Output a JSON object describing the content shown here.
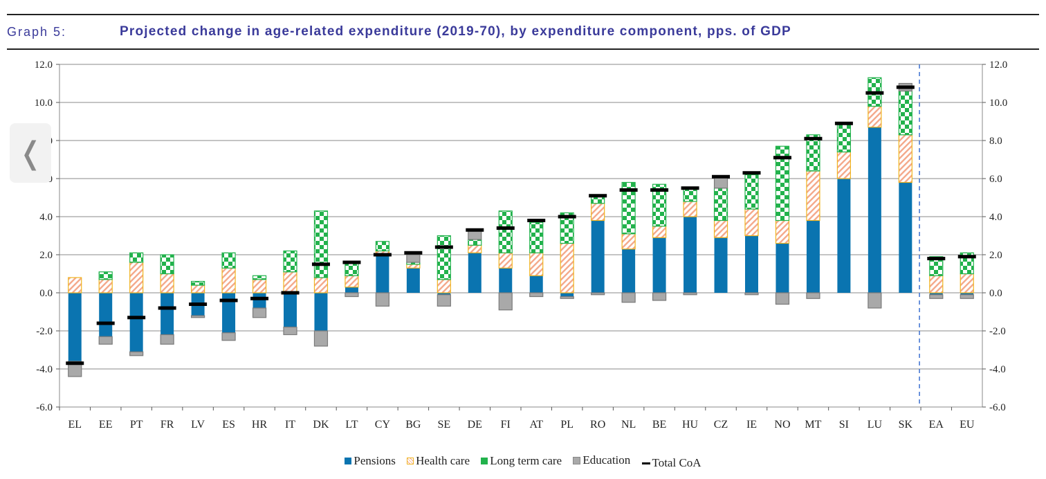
{
  "header": {
    "graph_number": "Graph 5:",
    "title": "Projected change in age-related expenditure (2019-70), by expenditure component, pps. of GDP"
  },
  "nav": {
    "back_glyph": "❬"
  },
  "colors": {
    "pensions": "#0a74b0",
    "health_stroke": "#f0b41e",
    "health_hatch": "#f4a88a",
    "ltc": "#22b24c",
    "education": "#a9a9a9",
    "total": "#000000",
    "title": "#3a3a9a"
  },
  "legend": {
    "pensions": "Pensions",
    "health": "Health care",
    "ltc": "Long term care",
    "education": "Education",
    "total": "Total CoA"
  },
  "chart_data": {
    "type": "bar",
    "stacked": true,
    "categories": [
      "EL",
      "EE",
      "PT",
      "FR",
      "LV",
      "ES",
      "HR",
      "IT",
      "DK",
      "LT",
      "CY",
      "BG",
      "SE",
      "DE",
      "FI",
      "AT",
      "PL",
      "RO",
      "NL",
      "BE",
      "HU",
      "CZ",
      "IE",
      "NO",
      "MT",
      "SI",
      "LU",
      "SK",
      "EA",
      "EU"
    ],
    "series": [
      {
        "name": "Pensions",
        "values": [
          -3.6,
          -2.3,
          -3.1,
          -2.2,
          -1.2,
          -2.1,
          -0.8,
          -1.8,
          -2.0,
          0.3,
          2.0,
          1.3,
          -0.1,
          2.1,
          1.3,
          0.9,
          -0.2,
          3.8,
          2.3,
          2.9,
          4.0,
          2.9,
          3.0,
          2.6,
          3.8,
          6.0,
          8.7,
          5.8,
          -0.1,
          -0.1
        ]
      },
      {
        "name": "Health care",
        "values": [
          0.8,
          0.7,
          1.6,
          1.0,
          0.4,
          1.3,
          0.7,
          1.1,
          0.8,
          0.6,
          0.2,
          0.2,
          0.7,
          0.4,
          0.8,
          1.2,
          2.6,
          0.9,
          0.8,
          0.6,
          0.8,
          0.9,
          1.4,
          1.2,
          2.6,
          1.4,
          1.1,
          2.5,
          0.9,
          1.0
        ]
      },
      {
        "name": "Long term care",
        "values": [
          0.0,
          0.4,
          0.5,
          1.0,
          0.2,
          0.8,
          0.2,
          1.1,
          3.5,
          0.7,
          0.5,
          0.1,
          2.3,
          0.3,
          2.2,
          1.6,
          1.6,
          0.4,
          2.7,
          2.2,
          0.7,
          1.7,
          1.8,
          3.9,
          1.9,
          1.5,
          1.5,
          2.3,
          1.0,
          1.1
        ]
      },
      {
        "name": "Education",
        "values": [
          -0.8,
          -0.4,
          -0.2,
          -0.5,
          -0.1,
          -0.4,
          -0.5,
          -0.4,
          -0.8,
          -0.2,
          -0.7,
          0.4,
          -0.6,
          0.5,
          -0.9,
          -0.2,
          -0.1,
          -0.1,
          -0.5,
          -0.4,
          -0.1,
          0.6,
          -0.1,
          -0.6,
          -0.3,
          0.0,
          -0.8,
          0.4,
          -0.2,
          -0.2
        ]
      }
    ],
    "total_coa": [
      -3.7,
      -1.6,
      -1.3,
      -0.8,
      -0.6,
      -0.4,
      -0.3,
      0.0,
      1.5,
      1.6,
      2.0,
      2.1,
      2.4,
      3.3,
      3.4,
      3.8,
      4.0,
      5.1,
      5.4,
      5.4,
      5.5,
      6.1,
      6.3,
      7.1,
      8.1,
      8.9,
      10.5,
      10.8,
      1.8,
      1.9
    ],
    "ylim": [
      -6,
      12
    ],
    "yticks": [
      "-6.0",
      "-4.0",
      "-2.0",
      "0.0",
      "2.0",
      "4.0",
      "6.0",
      "8.0",
      "10.0",
      "12.0"
    ],
    "grid": true,
    "separator_before": "EA",
    "legend_position": "bottom-center"
  }
}
